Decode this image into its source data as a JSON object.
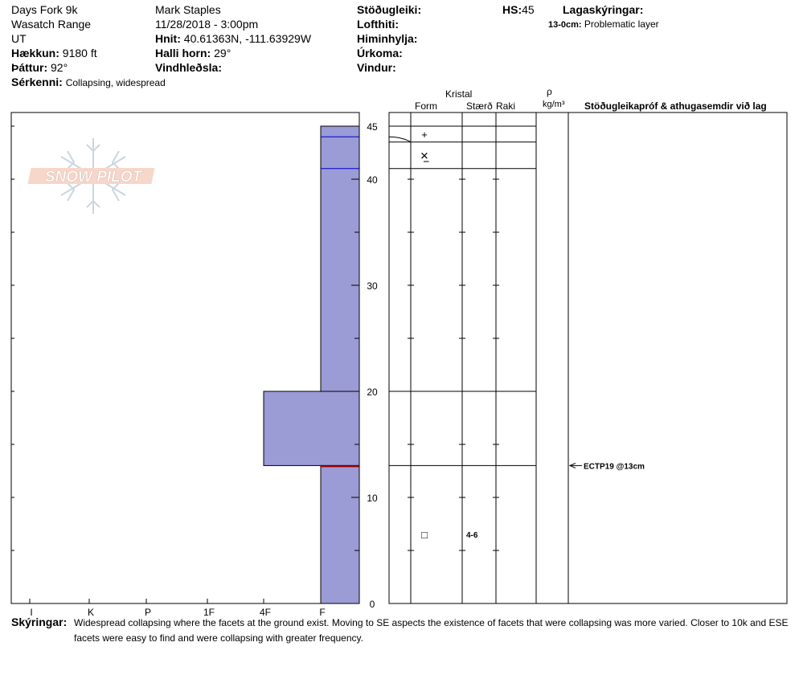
{
  "header": {
    "location": "Days Fork 9k",
    "range": "Wasatch Range",
    "state": "UT",
    "elevation_label": "Hækkun:",
    "elevation_value": "9180 ft",
    "aspect_label": "Þáttur:",
    "aspect_value": "92°",
    "observer": "Mark Staples",
    "datetime": "11/28/2018 - 3:00pm",
    "coords_label": "Hnit:",
    "coords_value": "40.61363N, -111.63929W",
    "slope_label": "Halli horn:",
    "slope_value": "29°",
    "wind_loading_label": "Vindhleðsla:",
    "stability_label": "Stöðugleiki:",
    "air_temp_label": "Lofthiti:",
    "sky_label": "Himinhylja:",
    "precip_label": "Úrkoma:",
    "wind_label": "Vindur:",
    "hs_label": "HS:",
    "hs_value": "45",
    "legend_title": "Lagaskýringar:",
    "legend_item_depth": "13-0cm:",
    "legend_item_text": "Problematic layer",
    "features_label": "Sérkenni:",
    "features_value": "Collapsing, widespread"
  },
  "logo_text": "SNOW PILOT",
  "table_headers": {
    "crystal": "Kristal",
    "form": "Form",
    "size": "Stærð",
    "moisture": "Raki",
    "density_symbol": "ρ",
    "density_unit": "kg/m³",
    "tests": "Stöðugleikapróf & athugasemdir við lag"
  },
  "test_annotation": "ECTP19 @13cm",
  "comments_label": "Skýringar:",
  "comments_line1": "Widespread collapsing where the facets at the ground exist. Moving to SE aspects the existence of facets that were collapsing was more varied. Closer to 10k and ESE",
  "comments_line2": "facets were easy to find and were collapsing with greater frequency.",
  "colors": {
    "hardness_fill": "#9b9bd6",
    "layer_line": "#0000cc",
    "problem_line": "#aa0000"
  },
  "chart_data": {
    "type": "snow-profile",
    "hardness_axis": {
      "ticks": [
        "I",
        "K",
        "P",
        "1F",
        "4F",
        "F"
      ]
    },
    "height_axis": {
      "unit": "cm",
      "ylim": [
        0,
        45
      ],
      "major_ticks": [
        0,
        10,
        20,
        30,
        40,
        45
      ]
    },
    "hardness_layers": [
      {
        "top": 45,
        "bottom": 20,
        "hardness": "F"
      },
      {
        "top": 20,
        "bottom": 13,
        "hardness": "4F"
      },
      {
        "top": 13,
        "bottom": 0,
        "hardness": "F"
      }
    ],
    "layer_boundaries_blue": [
      44,
      41
    ],
    "problem_layer_line": 13,
    "crystal_rows": [
      {
        "top": 45,
        "bottom": 43.5,
        "form_symbol": "+",
        "size": ""
      },
      {
        "top": 43.5,
        "bottom": 41,
        "form_symbol": "✕̲",
        "size": ""
      },
      {
        "top": 41,
        "bottom": 20,
        "form_symbol": "",
        "size": ""
      },
      {
        "top": 20,
        "bottom": 13,
        "form_symbol": "",
        "size": ""
      },
      {
        "top": 13,
        "bottom": 0,
        "form_symbol": "□",
        "size": "4-6"
      }
    ],
    "test_result_height": 13
  }
}
